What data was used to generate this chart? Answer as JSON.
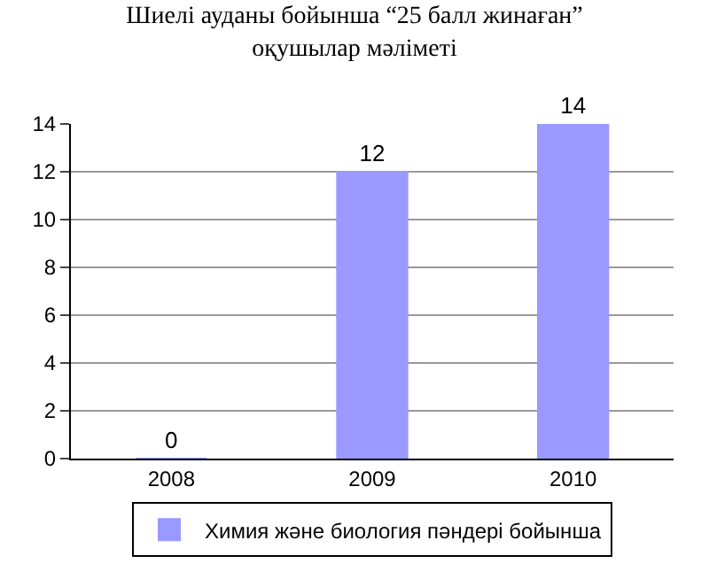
{
  "chart_data": {
    "type": "bar",
    "title": "Шиелі ауданы бойынша “25 балл жинаған”\nоқушылар мәліметі",
    "categories": [
      "2008",
      "2009",
      "2010"
    ],
    "series": [
      {
        "name": "Химия және биология пәндері бойынша",
        "color": "#9999ff",
        "values": [
          0,
          12,
          14
        ]
      }
    ],
    "ylim": [
      0,
      14
    ],
    "yticks": [
      0,
      2,
      4,
      6,
      8,
      10,
      12,
      14
    ],
    "grid": "y",
    "legend": "bottom",
    "data_labels": true
  }
}
